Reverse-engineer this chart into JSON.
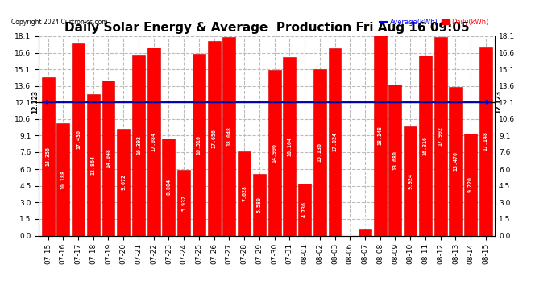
{
  "title": "Daily Solar Energy & Average  Production Fri Aug 16 09:05",
  "copyright": "Copyright 2024 Curtronics.com",
  "legend_average": "Average(kWh)",
  "legend_daily": "Daily(kWh)",
  "categories": [
    "07-15",
    "07-16",
    "07-17",
    "07-18",
    "07-19",
    "07-20",
    "07-21",
    "07-22",
    "07-23",
    "07-24",
    "07-25",
    "07-26",
    "07-27",
    "07-28",
    "07-29",
    "07-30",
    "07-31",
    "08-01",
    "08-02",
    "08-03",
    "08-06",
    "08-07",
    "08-08",
    "08-09",
    "08-10",
    "08-11",
    "08-12",
    "08-13",
    "08-14",
    "08-15"
  ],
  "values": [
    14.356,
    10.188,
    17.436,
    12.864,
    14.048,
    9.672,
    16.392,
    17.084,
    8.804,
    5.932,
    16.516,
    17.656,
    18.048,
    7.628,
    5.58,
    14.996,
    16.164,
    4.736,
    15.136,
    17.024,
    0.0,
    0.636,
    18.148,
    13.68,
    9.924,
    16.316,
    17.992,
    13.476,
    9.22,
    17.148
  ],
  "average_line": 12.123,
  "bar_color": "#ff0000",
  "bar_edge_color": "#cc0000",
  "avg_line_color": "#0000ff",
  "background_color": "#ffffff",
  "grid_color": "#bbbbbb",
  "ylim": [
    0.0,
    18.1
  ],
  "yticks": [
    0.0,
    1.5,
    3.0,
    4.5,
    6.0,
    7.6,
    9.1,
    10.6,
    12.1,
    13.6,
    15.1,
    16.6,
    18.1
  ],
  "title_fontsize": 11,
  "value_fontsize": 4.8,
  "tick_fontsize": 6.5
}
